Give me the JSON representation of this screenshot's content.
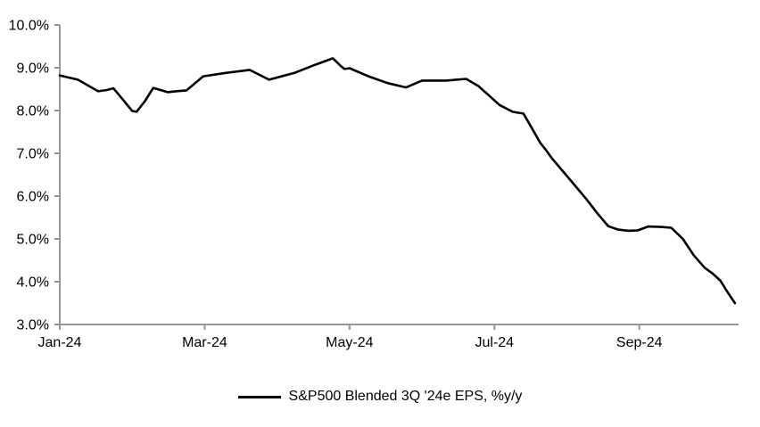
{
  "chart_data": {
    "type": "line",
    "title": "",
    "legend": {
      "label": "S&P500 Blended 3Q '24e EPS, %y/y",
      "line_color": "#000000",
      "position": "bottom-center"
    },
    "style": {
      "axis_color": "#969696",
      "label_color": "#000000",
      "background": "#ffffff",
      "grid": "off"
    },
    "y_axis": {
      "min": 3.0,
      "max": 10.0,
      "tick_step": 1.0,
      "unit": "%",
      "ticks": [
        {
          "value": 10.0,
          "label": "10.0%"
        },
        {
          "value": 9.0,
          "label": "9.0%"
        },
        {
          "value": 8.0,
          "label": "8.0%"
        },
        {
          "value": 7.0,
          "label": "7.0%"
        },
        {
          "value": 6.0,
          "label": "6.0%"
        },
        {
          "value": 5.0,
          "label": "5.0%"
        },
        {
          "value": 4.0,
          "label": "4.0%"
        },
        {
          "value": 3.0,
          "label": "3.0%"
        }
      ]
    },
    "x_axis": {
      "range_months": [
        0,
        9.37
      ],
      "month_zero": "Jan-24",
      "ticks": [
        {
          "month": 0,
          "label": "Jan-24"
        },
        {
          "month": 2,
          "label": "Mar-24"
        },
        {
          "month": 4,
          "label": "May-24"
        },
        {
          "month": 6,
          "label": "Jul-24"
        },
        {
          "month": 8,
          "label": "Sep-24"
        }
      ]
    },
    "series": [
      {
        "name": "S&P500 Blended 3Q '24e EPS, %y/y",
        "color": "#000000",
        "points": [
          [
            0.0,
            8.82
          ],
          [
            0.25,
            8.72
          ],
          [
            0.53,
            8.45
          ],
          [
            0.65,
            8.48
          ],
          [
            0.74,
            8.52
          ],
          [
            0.86,
            8.28
          ],
          [
            1.0,
            7.99
          ],
          [
            1.06,
            7.97
          ],
          [
            1.18,
            8.23
          ],
          [
            1.29,
            8.53
          ],
          [
            1.49,
            8.43
          ],
          [
            1.6,
            8.45
          ],
          [
            1.75,
            8.47
          ],
          [
            1.98,
            8.8
          ],
          [
            2.29,
            8.88
          ],
          [
            2.62,
            8.95
          ],
          [
            2.89,
            8.72
          ],
          [
            3.24,
            8.88
          ],
          [
            3.51,
            9.06
          ],
          [
            3.77,
            9.22
          ],
          [
            3.88,
            9.04
          ],
          [
            3.93,
            8.97
          ],
          [
            4.0,
            8.99
          ],
          [
            4.26,
            8.8
          ],
          [
            4.53,
            8.64
          ],
          [
            4.78,
            8.54
          ],
          [
            5.0,
            8.7
          ],
          [
            5.33,
            8.7
          ],
          [
            5.61,
            8.74
          ],
          [
            5.78,
            8.57
          ],
          [
            5.94,
            8.33
          ],
          [
            6.07,
            8.13
          ],
          [
            6.25,
            7.97
          ],
          [
            6.4,
            7.93
          ],
          [
            6.52,
            7.58
          ],
          [
            6.63,
            7.25
          ],
          [
            6.71,
            7.08
          ],
          [
            6.79,
            6.89
          ],
          [
            6.95,
            6.57
          ],
          [
            7.11,
            6.25
          ],
          [
            7.27,
            5.93
          ],
          [
            7.42,
            5.6
          ],
          [
            7.57,
            5.3
          ],
          [
            7.7,
            5.22
          ],
          [
            7.85,
            5.19
          ],
          [
            7.98,
            5.2
          ],
          [
            8.12,
            5.29
          ],
          [
            8.3,
            5.28
          ],
          [
            8.44,
            5.26
          ],
          [
            8.6,
            5.0
          ],
          [
            8.75,
            4.62
          ],
          [
            8.9,
            4.33
          ],
          [
            9.02,
            4.18
          ],
          [
            9.12,
            4.02
          ],
          [
            9.22,
            3.75
          ],
          [
            9.32,
            3.5
          ]
        ]
      }
    ]
  }
}
